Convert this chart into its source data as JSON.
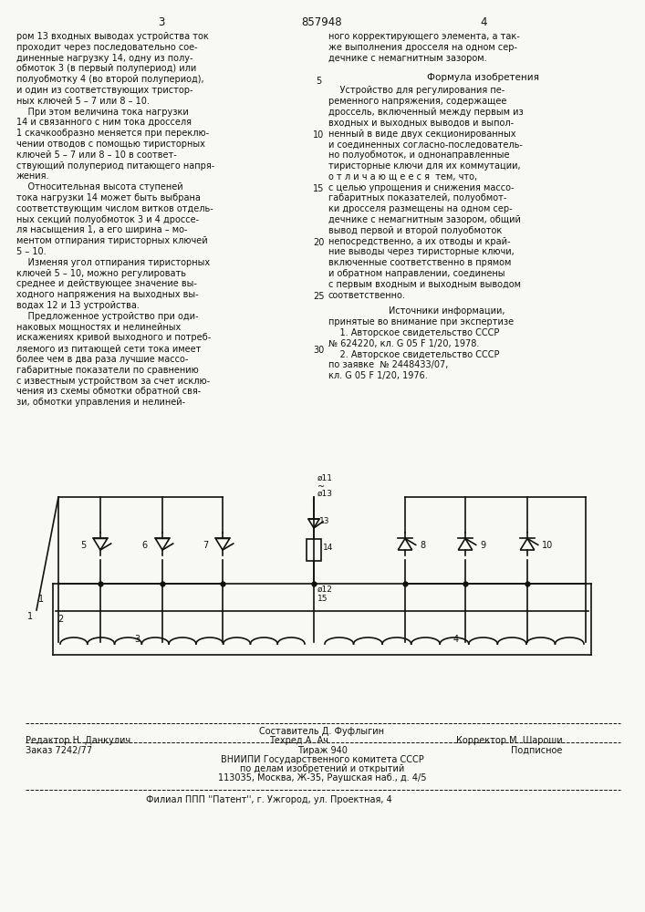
{
  "title": "857948",
  "page_left": "3",
  "page_right": "4",
  "bg_color": "#f8f8f4",
  "text_color": "#111111",
  "left_column_text": [
    "ром 13 входных выводах устройства ток",
    "проходит через последовательно сое-",
    "диненные нагрузку 14, одну из полу-",
    "обмоток 3 (в первый полупериод) или",
    "полуобмотку 4 (во второй полупериод),",
    "и один из соответствующих тристор-",
    "ных ключей 5 – 7 или 8 – 10.",
    "    При этом величина тока нагрузки",
    "14 и связанного с ним тока дросселя",
    "1 скачкообразно меняется при переклю-",
    "чении отводов с помощью тиристорных",
    "ключей 5 – 7 или 8 – 10 в соответ-",
    "ствующий полупериод питающего напря-",
    "жения.",
    "    Относительная высота ступеней",
    "тока нагрузки 14 может быть выбрана",
    "соответствующим числом витков отдель-",
    "ных секций полуобмоток 3 и 4 дроссе-",
    "ля насыщения 1, а его ширина – мо-",
    "ментом отпирания тиристорных ключей",
    "5 – 10.",
    "    Изменяя угол отпирания тиристорных",
    "ключей 5 – 10, можно регулировать",
    "среднее и действующее значение вы-",
    "ходного напряжения на выходных вы-",
    "водах 12 и 13 устройства.",
    "    Предложенное устройство при оди-",
    "наковых мощностях и нелинейных",
    "искажениях кривой выходного и потреб-",
    "ляемого из питающей сети тока имеет",
    "более чем в два раза лучшие массо-",
    "габаритные показатели по сравнению",
    "с известным устройством за счет исклю-",
    "чения из схемы обмотки обратной свя-",
    "зи, обмотки управления и нелиней-"
  ],
  "right_col_top": [
    "ного корректирующего элемента, а так-",
    "же выполнения дросселя на одном сер-",
    "дечнике с немагнитным зазором."
  ],
  "formula_title": "Формула изобретения",
  "formula_text": [
    "    Устройство для регулирования пе-",
    "ременного напряжения, содержащее",
    "дроссель, включенный между первым из",
    "входных и выходных выводов и выпол-",
    "ненный в виде двух секционированных",
    "и соединенных согласно-последователь-",
    "но полуобмоток, и однонаправленные",
    "тиристорные ключи для их коммутации,",
    "о т л и ч а ю щ е е с я  тем, что,",
    "с целью упрощения и снижения массо-",
    "габаритных показателей, полуобмот-",
    "ки дросселя размещены на одном сер-",
    "дечнике с немагнитным зазором, общий",
    "вывод первой и второй полуобмоток",
    "непосредственно, а их отводы и край-",
    "ние выводы через тиристорные ключи,",
    "включенные соответственно в прямом",
    "и обратном направлении, соединены",
    "с первым входным и выходным выводом",
    "соответственно."
  ],
  "sources_title": "Источники информации,",
  "sources_text": [
    "принятые во внимание при экспертизе",
    "    1. Авторское свидетельство СССР",
    "№ 624220, кл. G 05 F 1/20, 1978.",
    "    2. Авторское свидетельство СССР",
    "по заявке  № 2448433/07,",
    "кл. G 05 F 1/20, 1976."
  ],
  "footer_composer": "Составитель Д. Фуфлыгин",
  "footer_editor": "Редактор Н. Данкулич",
  "footer_techred": "Техред А. Ач",
  "footer_corrector": "Корректор М. Шароши",
  "footer_order": "Заказ 7242/77",
  "footer_tirazh": "Тираж 940",
  "footer_podpisnoe": "Подписное",
  "footer_vniipi": "ВНИИПИ Государственного комитета СССР",
  "footer_po_delam": "по делам изобретений и открытий",
  "footer_address": "113035, Москва, Ж-35, Раушская наб., д. 4/5",
  "footer_filial": "Филиал ППП ''Патент'', г. Ужгород, ул. Проектная, 4"
}
